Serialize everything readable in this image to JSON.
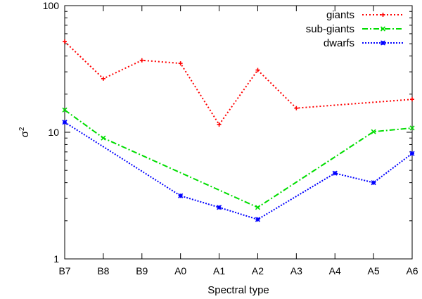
{
  "chart_data": {
    "type": "line",
    "title": "",
    "xlabel": "Spectral type",
    "ylabel": "σ",
    "ylabel_superscript": "2",
    "yscale": "log",
    "ylim": [
      1,
      100
    ],
    "yticks": [
      1,
      10,
      100
    ],
    "ytick_labels": [
      "1",
      "10",
      "100"
    ],
    "categories": [
      "B7",
      "B8",
      "B9",
      "A0",
      "A1",
      "A2",
      "A3",
      "A4",
      "A5",
      "A6"
    ],
    "legend_position": "top-right",
    "grid": false,
    "series": [
      {
        "name": "giants",
        "color": "#ff0000",
        "dash": "dotted-dash",
        "marker": "plus",
        "values": [
          52,
          26.5,
          37,
          35,
          11.5,
          31,
          15.5,
          null,
          null,
          18.2
        ]
      },
      {
        "name": "sub-giants",
        "color": "#00dd00",
        "dash": "dash-dot",
        "marker": "cross",
        "values": [
          15,
          9,
          null,
          null,
          null,
          2.55,
          null,
          null,
          10.1,
          10.8
        ]
      },
      {
        "name": "dwarfs",
        "color": "#0000ff",
        "dash": "dotted",
        "marker": "star",
        "values": [
          12,
          null,
          null,
          3.15,
          2.55,
          2.05,
          null,
          4.75,
          4.0,
          6.8
        ]
      }
    ]
  }
}
